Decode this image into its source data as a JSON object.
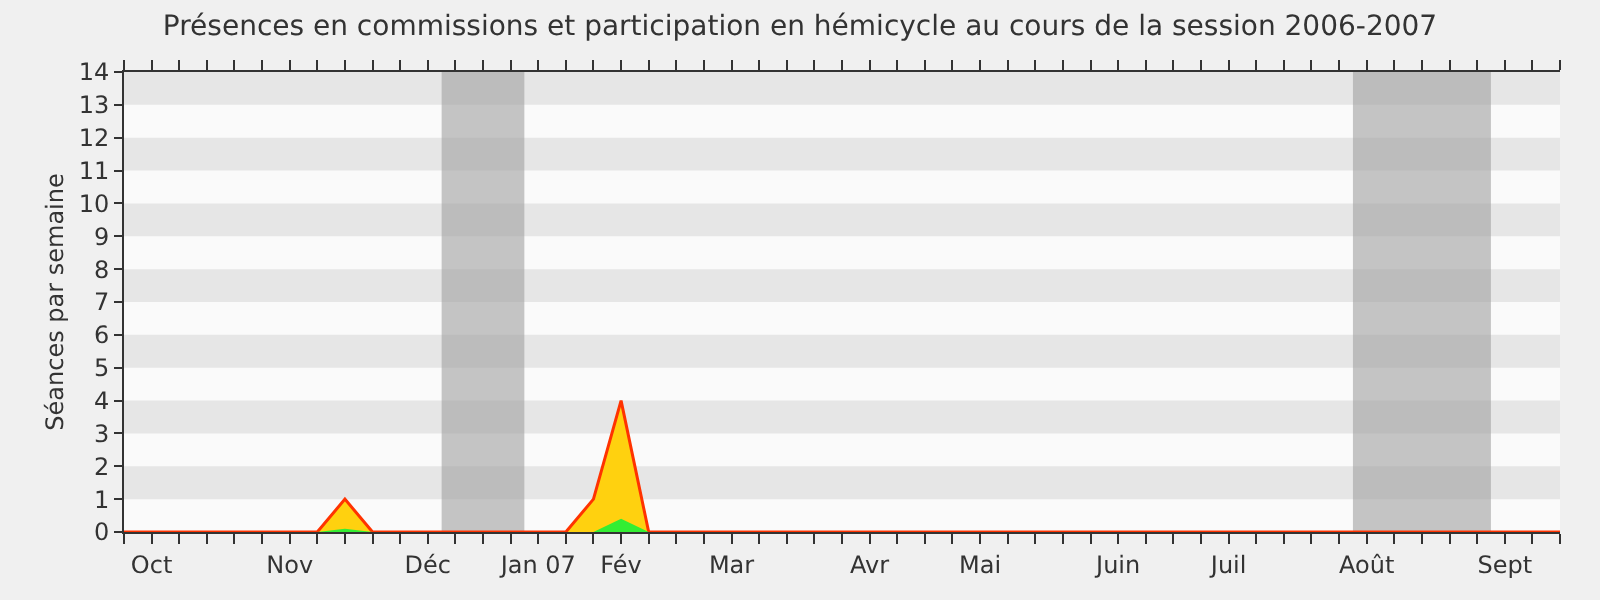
{
  "chart_data": {
    "type": "area",
    "title": "Présences en commissions et participation en hémicycle au cours de la session 2006-2007",
    "ylabel": "Séances par semaine",
    "categories": [
      null,
      "Oct",
      null,
      null,
      null,
      null,
      "Nov",
      null,
      null,
      null,
      null,
      "Déc",
      null,
      null,
      null,
      "Jan 07",
      null,
      null,
      "Fév",
      null,
      null,
      null,
      "Mar",
      null,
      null,
      null,
      null,
      "Avr",
      null,
      null,
      null,
      "Mai",
      null,
      null,
      null,
      null,
      "Juin",
      null,
      null,
      null,
      "Juil",
      null,
      null,
      null,
      null,
      "Août",
      null,
      null,
      null,
      null,
      "Sept",
      null,
      null
    ],
    "series": [
      {
        "color": "#ffd10f",
        "values": [
          0,
          0,
          0,
          0,
          0,
          0,
          0,
          0,
          1,
          0,
          0,
          0,
          0,
          0,
          0,
          0,
          0,
          1,
          4,
          0,
          0,
          0,
          0,
          0,
          0,
          0,
          0,
          0,
          0,
          0,
          0,
          0,
          0,
          0,
          0,
          0,
          0,
          0,
          0,
          0,
          0,
          0,
          0,
          0,
          0,
          0,
          0,
          0,
          0,
          0,
          0,
          0,
          0
        ]
      },
      {
        "color": "#33ee33",
        "values": [
          0,
          0,
          0,
          0,
          0,
          0,
          0,
          0,
          0.1,
          0,
          0,
          0,
          0,
          0,
          0,
          0,
          0,
          0,
          0.4,
          0,
          0,
          0,
          0,
          0,
          0,
          0,
          0,
          0,
          0,
          0,
          0,
          0,
          0,
          0,
          0,
          0,
          0,
          0,
          0,
          0,
          0,
          0,
          0,
          0,
          0,
          0,
          0,
          0,
          0,
          0,
          0,
          0,
          0
        ]
      }
    ],
    "ylim": [
      0,
      14
    ],
    "yticks": [
      0,
      1,
      2,
      3,
      4,
      5,
      6,
      7,
      8,
      9,
      10,
      11,
      12,
      13,
      14
    ],
    "legend": false,
    "marker": "none"
  }
}
